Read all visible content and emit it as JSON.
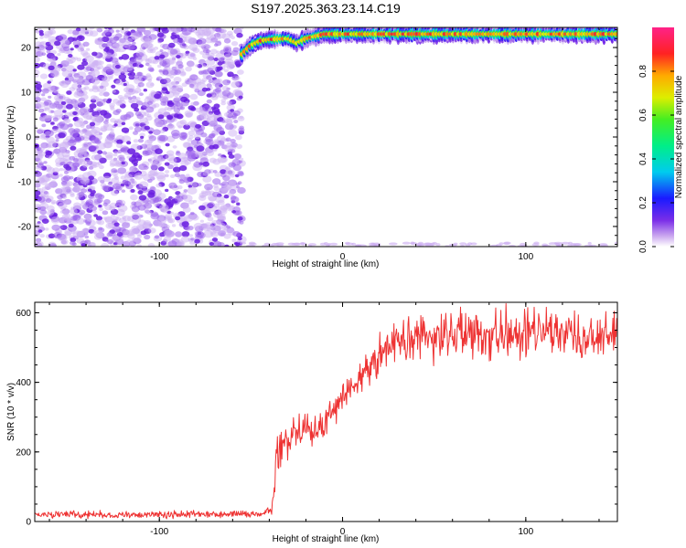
{
  "title": "S197.2025.363.23.14.C19",
  "chart_data": [
    {
      "type": "heatmap",
      "xlabel": "Height of straight line (km)",
      "ylabel": "Frequency (Hz)",
      "xlim": [
        -168,
        150
      ],
      "ylim": [
        -24.5,
        24.5
      ],
      "xticks": [
        -100,
        0,
        100
      ],
      "xtick_labels": [
        "-100",
        "0",
        "100"
      ],
      "yticks": [
        -20,
        -10,
        0,
        10,
        20
      ],
      "ytick_labels": [
        "-20",
        "-10",
        "0",
        "10",
        "20"
      ],
      "colorbar": {
        "label": "Normalized spectral amplitude",
        "range": [
          0,
          1
        ],
        "ticks": [
          0.0,
          0.2,
          0.4,
          0.6,
          0.8
        ],
        "tick_labels": [
          "0.0",
          "0.2",
          "0.4",
          "0.6",
          "0.8"
        ],
        "colormap": "rainbow (purple-blue-cyan-green-yellow-orange-red-magenta)"
      },
      "features": [
        {
          "name": "noise",
          "x_range": [
            -168,
            -55
          ],
          "y_range": [
            -24.5,
            24.5
          ],
          "amplitude": 0.1
        },
        {
          "name": "signal band",
          "x": [
            -55,
            -50,
            -45,
            -40,
            -30,
            -25,
            -20,
            -10,
            0,
            20,
            40,
            60,
            80,
            100,
            120,
            150
          ],
          "y": [
            18.5,
            20.5,
            21.5,
            21.8,
            22.0,
            21.0,
            22.0,
            23.0,
            23.0,
            23.0,
            23.0,
            23.0,
            23.0,
            23.0,
            23.0,
            23.0
          ],
          "peak_amplitude": 0.9
        }
      ]
    },
    {
      "type": "line",
      "xlabel": "Height of straight line (km)",
      "ylabel": "SNR (10 * v/v)",
      "xlim": [
        -168,
        150
      ],
      "ylim": [
        0,
        630
      ],
      "xticks": [
        -100,
        0,
        100
      ],
      "xtick_labels": [
        "-100",
        "0",
        "100"
      ],
      "yticks": [
        0,
        200,
        400,
        600
      ],
      "ytick_labels": [
        "0",
        "200",
        "400",
        "600"
      ],
      "color": "#ee3333",
      "series": [
        {
          "x": [
            -168,
            -160,
            -150,
            -140,
            -130,
            -120,
            -110,
            -100,
            -90,
            -80,
            -70,
            -60,
            -50,
            -45,
            -42,
            -40,
            -38,
            -37,
            -36,
            -35,
            -34,
            -32,
            -30,
            -28,
            -25,
            -22,
            -20,
            -18,
            -16,
            -14,
            -12,
            -10,
            -8,
            -6,
            -4,
            -2,
            0,
            5,
            10,
            15,
            20,
            25,
            30,
            40,
            50,
            60,
            70,
            80,
            90,
            100,
            110,
            120,
            130,
            140,
            150
          ],
          "y": [
            20,
            20,
            21,
            19,
            20,
            20,
            21,
            20,
            20,
            21,
            20,
            21,
            21,
            22,
            25,
            30,
            60,
            120,
            260,
            220,
            200,
            230,
            240,
            260,
            275,
            270,
            290,
            265,
            250,
            262,
            258,
            280,
            295,
            305,
            315,
            330,
            355,
            380,
            410,
            440,
            470,
            500,
            515,
            525,
            530,
            535,
            535,
            540,
            538,
            540,
            540,
            535,
            538,
            537,
            540
          ],
          "noise_amplitude": [
            10,
            10,
            10,
            10,
            10,
            10,
            10,
            10,
            10,
            10,
            10,
            10,
            10,
            10,
            12,
            14,
            30,
            60,
            80,
            70,
            45,
            45,
            45,
            45,
            45,
            45,
            45,
            45,
            45,
            45,
            45,
            50,
            50,
            50,
            50,
            50,
            50,
            55,
            55,
            60,
            65,
            70,
            70,
            70,
            70,
            70,
            70,
            70,
            70,
            70,
            65,
            65,
            65,
            65,
            65
          ]
        }
      ]
    }
  ]
}
